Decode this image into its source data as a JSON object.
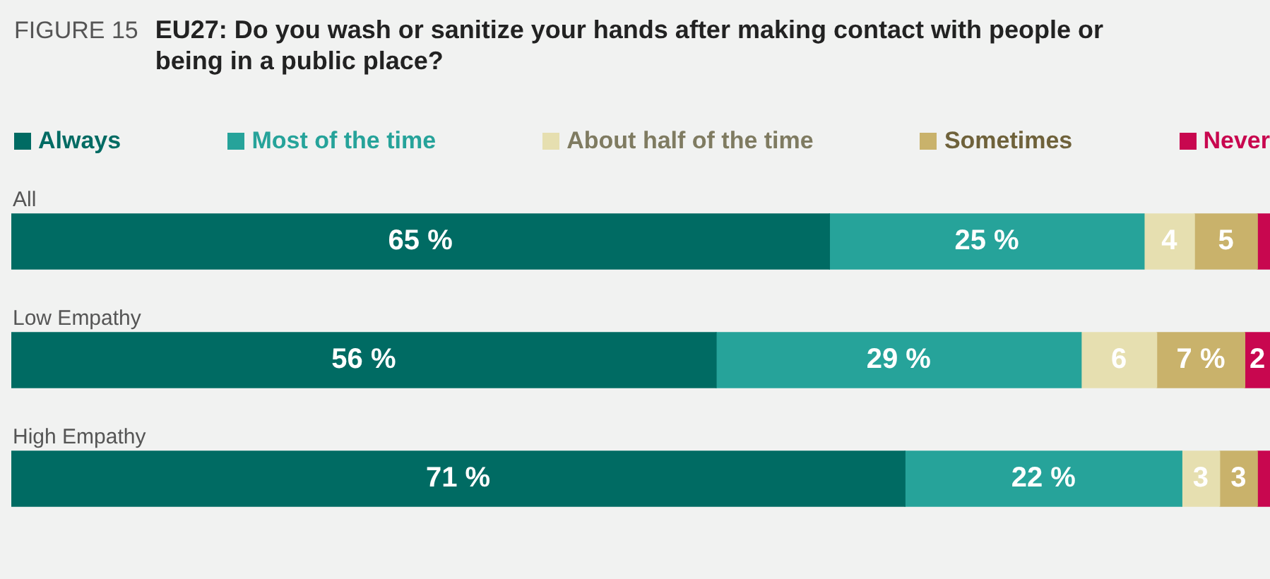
{
  "chart_data": {
    "type": "bar",
    "orientation": "horizontal",
    "stacked": true,
    "title": "EU27: Do you wash or sanitize your hands after making contact with people or being in a public place?",
    "annotations": [
      "FIGURE 15"
    ],
    "categories": [
      "All",
      "Low Empathy",
      "High Empathy"
    ],
    "xlim": [
      0,
      100
    ],
    "tick_labels": false,
    "legend": "top",
    "series": [
      {
        "name": "Always",
        "color": "#006b63",
        "values": [
          65,
          56,
          71
        ],
        "value_labels": [
          "65 %",
          "56 %",
          "71 %"
        ]
      },
      {
        "name": "Most of the time",
        "color": "#26a39a",
        "values": [
          25,
          29,
          22
        ],
        "value_labels": [
          "25 %",
          "29 %",
          "22 %"
        ]
      },
      {
        "name": "About half of the time",
        "color": "#e6dfb0",
        "values": [
          4,
          6,
          3
        ],
        "value_labels": [
          "4",
          "6",
          "3"
        ]
      },
      {
        "name": "Sometimes",
        "color": "#c9b26b",
        "values": [
          5,
          7,
          3
        ],
        "value_labels": [
          "5",
          "7 %",
          "3"
        ]
      },
      {
        "name": "Never",
        "color": "#c8074f",
        "values": [
          1,
          2,
          1
        ],
        "value_labels": [
          null,
          "2",
          null
        ]
      }
    ]
  }
}
